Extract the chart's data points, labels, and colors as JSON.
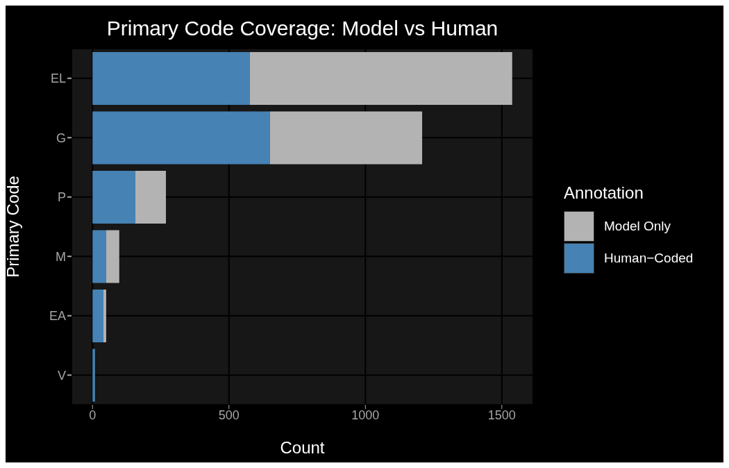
{
  "chart_data": {
    "type": "bar",
    "orientation": "horizontal",
    "stacked": true,
    "title": "Primary Code Coverage: Model vs Human",
    "xlabel": "Count",
    "ylabel": "Primary Code",
    "legend_title": "Annotation",
    "categories": [
      "EL",
      "G",
      "P",
      "M",
      "EA",
      "V"
    ],
    "series": [
      {
        "name": "Human−Coded",
        "color": "#4682b4",
        "values": [
          576,
          650,
          157,
          50,
          40,
          9
        ]
      },
      {
        "name": "Model Only",
        "color": "#b3b3b3",
        "values": [
          962,
          558,
          112,
          48,
          10,
          0
        ]
      }
    ],
    "xlim": [
      -77,
      1615
    ],
    "xticks": [
      0,
      500,
      1000,
      1500
    ],
    "grid": true,
    "legend": "right"
  }
}
